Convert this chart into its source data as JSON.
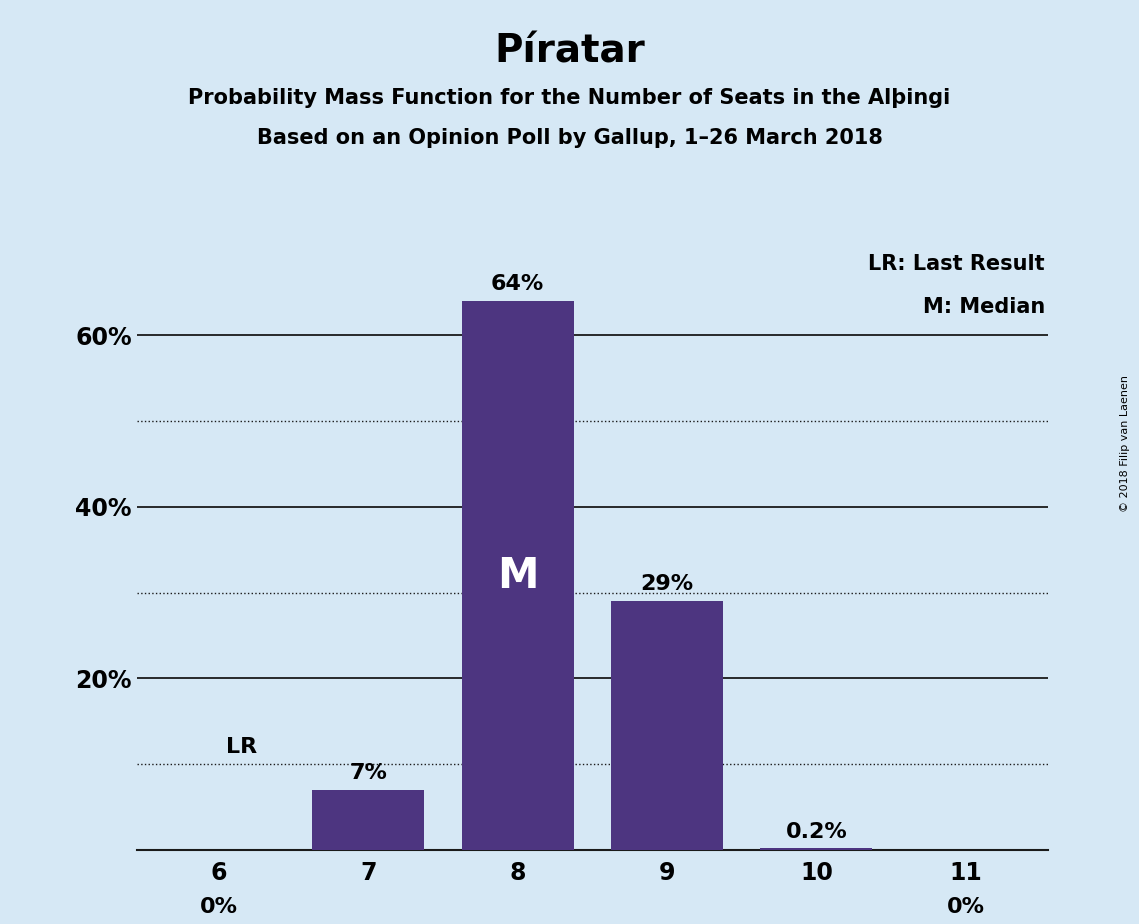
{
  "title": "Píratar",
  "subtitle1": "Probability Mass Function for the Number of Seats in the Alþingi",
  "subtitle2": "Based on an Opinion Poll by Gallup, 1–26 March 2018",
  "categories": [
    6,
    7,
    8,
    9,
    10,
    11
  ],
  "values": [
    0.0,
    7.0,
    64.0,
    29.0,
    0.2,
    0.0
  ],
  "bar_color": "#4d3580",
  "background_color": "#d6e8f5",
  "bar_labels": [
    "0%",
    "7%",
    "64%",
    "29%",
    "0.2%",
    "0%"
  ],
  "median_bar_idx": 2,
  "median_label": "M",
  "lr_bar_idx": 0,
  "lr_label": "LR",
  "ylim": [
    0,
    70
  ],
  "solid_lines": [
    20,
    40,
    60
  ],
  "dotted_lines": [
    10,
    30,
    50
  ],
  "legend_text1": "LR: Last Result",
  "legend_text2": "M: Median",
  "copyright_text": "© 2018 Filip van Laenen",
  "title_fontsize": 28,
  "subtitle_fontsize": 15,
  "bar_label_fontsize": 16,
  "median_label_fontsize": 30,
  "legend_fontsize": 15,
  "ytick_positions": [
    20,
    40,
    60
  ],
  "ytick_labels": [
    "20%",
    "40%",
    "60%"
  ],
  "xtick_fontsize": 17,
  "ytick_fontsize": 17
}
